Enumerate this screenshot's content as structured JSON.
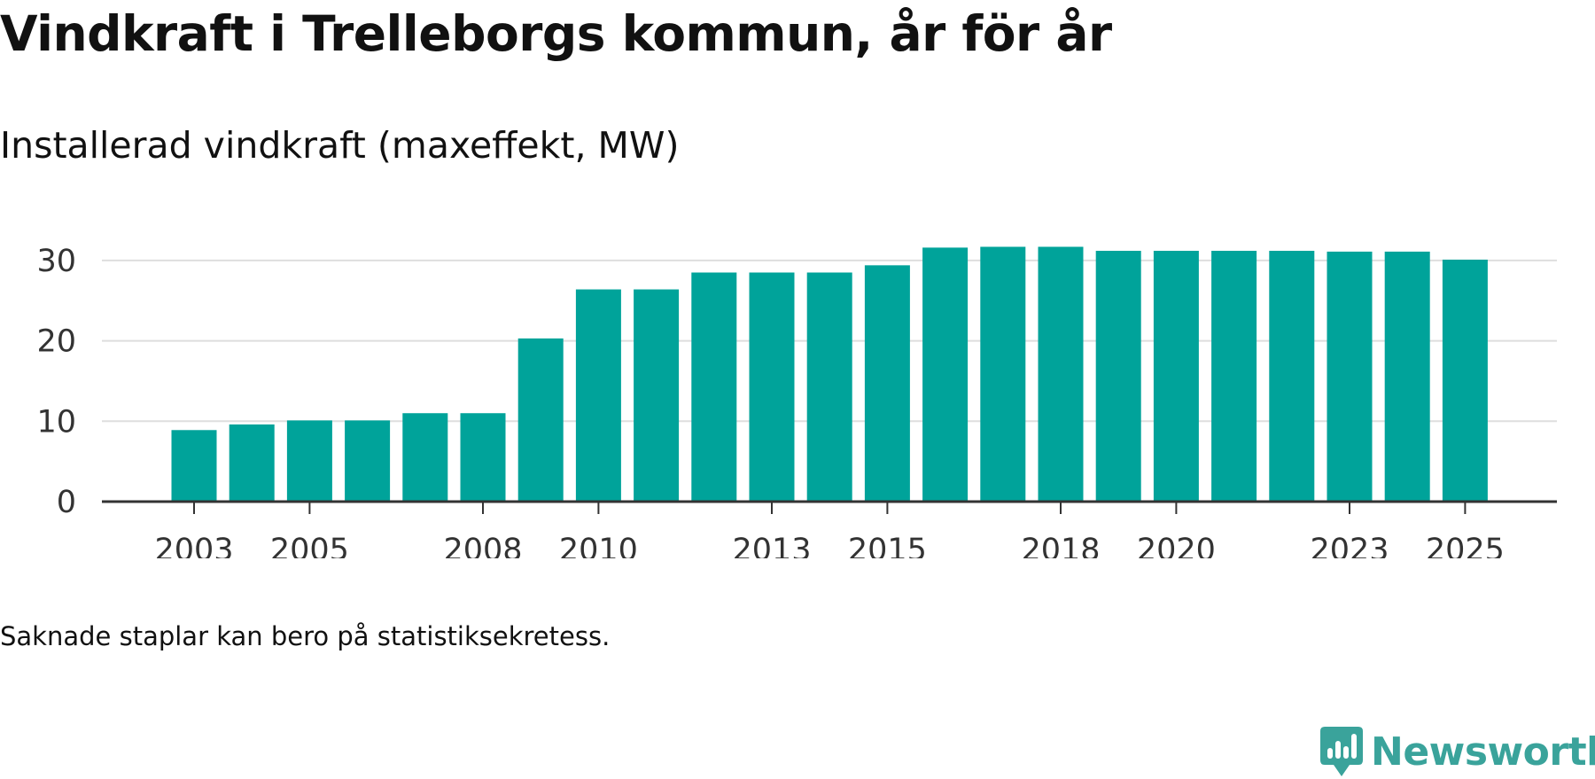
{
  "title": "Vindkraft i Trelleborgs kommun, år för år",
  "subtitle": "Installerad vindkraft (maxeffekt, MW)",
  "note": "Saknade staplar kan bero på statistiksekretess.",
  "brand": {
    "name": "Newsworthy",
    "icon": "newsworthy-logo-icon",
    "color": "#3aa39b"
  },
  "chart_data": {
    "type": "bar",
    "title": "Vindkraft i Trelleborgs kommun, år för år",
    "ylabel": "Installerad vindkraft (maxeffekt, MW)",
    "xlabel": "",
    "categories": [
      "2003",
      "2004",
      "2005",
      "2006",
      "2007",
      "2008",
      "2009",
      "2010",
      "2011",
      "2012",
      "2013",
      "2014",
      "2015",
      "2016",
      "2017",
      "2018",
      "2019",
      "2020",
      "2021",
      "2022",
      "2023",
      "2024",
      "2025"
    ],
    "values": [
      8.9,
      9.6,
      10.1,
      10.1,
      11.0,
      11.0,
      20.3,
      26.4,
      26.4,
      28.5,
      28.5,
      28.5,
      29.4,
      31.6,
      31.7,
      31.7,
      31.2,
      31.2,
      31.2,
      31.2,
      31.1,
      31.1,
      30.1
    ],
    "ylim": [
      0,
      30
    ],
    "yticks": [
      0,
      10,
      20,
      30
    ],
    "xtick_labels": [
      "2003",
      "2005",
      "2008",
      "2010",
      "2013",
      "2015",
      "2018",
      "2020",
      "2023",
      "2025"
    ],
    "grid": true,
    "bar_color": "#00a39a"
  }
}
